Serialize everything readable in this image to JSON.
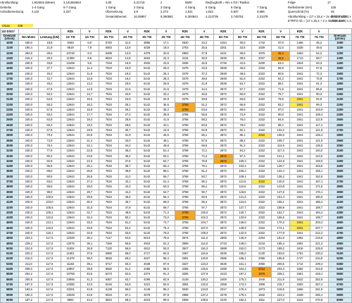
{
  "header": {
    "rows": [
      [
        "Abrollumfang:",
        "1,934815 (Meter)",
        "3,141592654",
        "3,05",
        "0,31715",
        "2",
        "5500",
        "Radzugkraft = Nm x G0 / Radius",
        "",
        "Felge",
        "17"
      ],
      [
        "Getriebe",
        "1-4 Gang",
        "5-7 Gang",
        "1 Gang",
        "2 Gang",
        "3 Gang",
        "4 Gang",
        "5 Gang",
        "6 Gang",
        "7 Gang",
        "Reifenbreite (mm)",
        "225"
      ],
      [
        "Achsübersetzung",
        "4,118",
        "3,227",
        "Übersetzung",
        "3,9",
        "2,273",
        "1,531",
        "1,023",
        "0,837",
        "0,686",
        "Querschnitt (%)",
        "45"
      ],
      [
        "",
        "",
        "",
        "Gesamtüberset.",
        "16,05957",
        "9,360581",
        "6,304844",
        "4,213735",
        "2,745751",
        "2,21378",
        "Abrollumfang = (17 x 25,4 + 2x 45 /100 x225) x 3,14159",
        "1962,71222"
      ],
      [
        "",
        "",
        "",
        "",
        "",
        "",
        "",
        "",
        "",
        "",
        "ETRTO Ab = (17 x 25,4 + 2 x 45 /100 x225) x 3,15",
        "1934,815"
      ]
    ],
    "vmax_label": "Vmax",
    "vmax_value": "235"
  },
  "table": {
    "title": "110 DSG7",
    "columns": [
      "Drehzahl (U/min)",
      "Nm Motor",
      "Leistung (kW)",
      "RZK",
      "V",
      "RZK",
      "V",
      "RZK",
      "V",
      "RZK",
      "V",
      "RZK",
      "V",
      "RZK",
      "V",
      "RZK",
      "V",
      "Drehzahl (U/min)"
    ],
    "subheader": [
      "Drehzahl (U/min)",
      "Nm Motor",
      "Leistung (kW)",
      "1G TSI",
      "1G TSI",
      "2G TSI",
      "2G TSI",
      "3G TSI",
      "3G TSI",
      "4G TSI",
      "4G TSI",
      "5G TSI",
      "5G TSI",
      "6G TSI",
      "6G TSI",
      "7G TSI",
      "7G TSI",
      "Drehzahl (U/min)"
    ],
    "rows": [
      [
        "1000",
        "180,0",
        "18,8",
        "9493",
        "6,9",
        "5720",
        "11,5",
        "3856",
        "17,1",
        "2620",
        "23,3",
        "2154",
        "30,6",
        "1742",
        "37,8",
        "1466",
        "45,2",
        "1000"
      ],
      [
        "1100",
        "190,4",
        "21,9",
        "9819",
        "7,9",
        "6063",
        "12,9",
        "4029",
        "19,0",
        "2753",
        "25,5",
        "2261",
        "33,5",
        "1829",
        "41,6",
        "1538",
        "49,6",
        "1100"
      ],
      [
        "1200",
        "204,6",
        "25,6",
        "10748",
        "8,3",
        "6489",
        "13,9",
        "4379",
        "20,6",
        "2963",
        "27,8",
        "2421",
        "36,5",
        "1976",
        "45,4",
        "1663",
        "54,2",
        "1200"
      ],
      [
        "1300",
        "215,2",
        "29,3",
        "11398",
        "8,8",
        "6834",
        "14,8",
        "4604",
        "22,3",
        "3115",
        "30,0",
        "2545",
        "39,5",
        "2037",
        "49,2",
        "1713",
        "58,7",
        "1300"
      ],
      [
        "1400",
        "230,5",
        "33,8",
        "12208",
        "9,6",
        "7318",
        "15,9",
        "4932",
        "23,6",
        "3336",
        "32,5",
        "2725",
        "42,5",
        "2200",
        "53,0",
        "1844",
        "63,3",
        "1400"
      ],
      [
        "1500",
        "240,0",
        "37,7",
        "12644",
        "11,4",
        "7634",
        "16,9",
        "5142",
        "25,0",
        "3479",
        "34,9",
        "2848",
        "45,6",
        "2322",
        "56,8",
        "1941",
        "67,8",
        "1500"
      ],
      [
        "1600",
        "240,0",
        "40,2",
        "12644",
        "11,8",
        "7634",
        "18,3",
        "5142",
        "26,4",
        "3479",
        "37,2",
        "2848",
        "48,6",
        "2322",
        "60,5",
        "1941",
        "72,3",
        "1600"
      ],
      [
        "1700",
        "240,0",
        "42,7",
        "12644",
        "12,5",
        "7634",
        "19,4",
        "5142",
        "28,3",
        "3479",
        "39,6",
        "2848",
        "51,6",
        "2322",
        "64,3",
        "1941",
        "76,8",
        "1700"
      ],
      [
        "1800",
        "240,0",
        "45,2",
        "12644",
        "13,2",
        "7634",
        "20,5",
        "5142",
        "29,9",
        "3479",
        "41,9",
        "2848",
        "54,7",
        "2322",
        "68,1",
        "1941",
        "81,3",
        "1800"
      ],
      [
        "1900",
        "240,0",
        "47,8",
        "12644",
        "14,0",
        "7634",
        "21,6",
        "5142",
        "31,5",
        "3479",
        "44,2",
        "2872",
        "57,7",
        "2322",
        "71,9",
        "1941",
        "85,8",
        "1900"
      ],
      [
        "2000",
        "240,0",
        "50,3",
        "12644",
        "14,7",
        "7634",
        "22,8",
        "5142",
        "33,2",
        "3479",
        "46,5",
        "2872",
        "60,8",
        "2322",
        "75,7",
        "1941",
        "90,3",
        "2000"
      ],
      [
        "2100",
        "240,0",
        "52,8",
        "12644",
        "15,5",
        "7634",
        "23,9",
        "5142",
        "34,9",
        "3479",
        "48,9",
        "2872",
        "63,8",
        "2322",
        "79,5",
        "1941",
        "94,8",
        "2100"
      ],
      [
        "2200",
        "240,0",
        "55,3",
        "12644",
        "16,2",
        "7634",
        "25,1",
        "5142",
        "36,5",
        "3768",
        "51,2",
        "2872",
        "66,9",
        "2322",
        "83,2",
        "1941",
        "99,3",
        "2200"
      ],
      [
        "2300",
        "240,0",
        "57,8",
        "12644",
        "16,9",
        "7634",
        "26,2",
        "5142",
        "38,2",
        "3768",
        "53,5",
        "2872",
        "69,9",
        "2322",
        "87,0",
        "1941",
        "103,9",
        "2300"
      ],
      [
        "2400",
        "240,0",
        "60,3",
        "12644",
        "17,7",
        "7634",
        "27,3",
        "5142",
        "39,8",
        "3768",
        "55,8",
        "2872",
        "72,9",
        "2322",
        "90,8",
        "1941",
        "108,4",
        "2400"
      ],
      [
        "2500",
        "240,0",
        "62,8",
        "12644",
        "18,4",
        "7634",
        "28,5",
        "5142",
        "41,5",
        "3768",
        "58,2",
        "2872",
        "76,0",
        "2322",
        "94,6",
        "1941",
        "112,9",
        "2500"
      ],
      [
        "2600",
        "240,0",
        "65,3",
        "12644",
        "19,2",
        "7634",
        "29,6",
        "5142",
        "43,1",
        "3768",
        "60,5",
        "2872",
        "79,0",
        "2322",
        "98,4",
        "1941",
        "117,4",
        "2600"
      ],
      [
        "2700",
        "240,0",
        "67,9",
        "12644",
        "19,9",
        "7634",
        "30,7",
        "5142",
        "44,8",
        "3768",
        "62,8",
        "2872",
        "82,1",
        "2322",
        "102,2",
        "1941",
        "121,9",
        "2700"
      ],
      [
        "2800",
        "240,0",
        "70,4",
        "12644",
        "20,6",
        "7634",
        "31,9",
        "5142",
        "46,5",
        "3768",
        "65,1",
        "2872",
        "85,1",
        "2322",
        "106,0",
        "1941",
        "126,4",
        "2800"
      ],
      [
        "2900",
        "240,0",
        "72,9",
        "12644",
        "21,4",
        "7634",
        "33,0",
        "5142",
        "48,1",
        "3768",
        "67,5",
        "2872",
        "88,2",
        "2322",
        "109,7",
        "1941",
        "131,0",
        "2900"
      ],
      [
        "3000",
        "240,0",
        "75,4",
        "12644",
        "22,1",
        "7634",
        "34,2",
        "5142",
        "49,8",
        "3768",
        "69,8",
        "2872",
        "91,2",
        "2322",
        "113,5",
        "1941",
        "135,5",
        "3000"
      ],
      [
        "3100",
        "240,0",
        "77,9",
        "12644",
        "22,8",
        "7634",
        "35,3",
        "5142",
        "51,4",
        "3768",
        "72,1",
        "2872",
        "94,2",
        "2322",
        "117,3",
        "1941",
        "140,0",
        "3100"
      ],
      [
        "3200",
        "240,0",
        "80,4",
        "12644",
        "23,6",
        "7634",
        "36,4",
        "5142",
        "53,1",
        "3768",
        "74,4",
        "2872",
        "97,3",
        "2322",
        "121,1",
        "1941",
        "144,5",
        "3200"
      ],
      [
        "3300",
        "240,0",
        "82,9",
        "12644",
        "24,3",
        "7634",
        "37,6",
        "5142",
        "54,7",
        "3768",
        "76,8",
        "2872",
        "100,3",
        "2322",
        "124,9",
        "1941",
        "149,0",
        "3300"
      ],
      [
        "3400",
        "240,0",
        "85,5",
        "12644",
        "25,1",
        "7634",
        "38,7",
        "5142",
        "56,4",
        "3768",
        "79,1",
        "2872",
        "103,4",
        "2322",
        "128,7",
        "1941",
        "153,5",
        "3400"
      ],
      [
        "3500",
        "240,0",
        "88,0",
        "12644",
        "25,8",
        "7634",
        "39,8",
        "5142",
        "58,1",
        "3768",
        "81,4",
        "2872",
        "106,4",
        "2322",
        "132,4",
        "1941",
        "158,1",
        "3500"
      ],
      [
        "3600",
        "240,0",
        "90,5",
        "12644",
        "26,5",
        "7634",
        "41,0",
        "5142",
        "59,7",
        "3768",
        "83,7",
        "2872",
        "109,4",
        "2322",
        "136,2",
        "1941",
        "162,6",
        "3600"
      ],
      [
        "3700",
        "240,0",
        "93,0",
        "12644",
        "27,3",
        "7634",
        "42,1",
        "5142",
        "61,4",
        "3768",
        "86,1",
        "2872",
        "112,5",
        "2322",
        "140,0",
        "1941",
        "167,1",
        "3700"
      ],
      [
        "3800",
        "240,0",
        "95,5",
        "12644",
        "28,0",
        "7634",
        "43,3",
        "5142",
        "63,0",
        "3768",
        "88,4",
        "2872",
        "115,5",
        "2322",
        "143,8",
        "1941",
        "171,6",
        "3800"
      ],
      [
        "3900",
        "240,0",
        "98,0",
        "12644",
        "28,7",
        "7634",
        "44,4",
        "5142",
        "64,7",
        "3768",
        "90,7",
        "2872",
        "118,6",
        "2322",
        "147,6",
        "1941",
        "176,1",
        "3900"
      ],
      [
        "4000",
        "240,0",
        "100,5",
        "12644",
        "29,5",
        "7634",
        "45,5",
        "5142",
        "66,4",
        "3768",
        "93,0",
        "2872",
        "121,6",
        "2322",
        "151,4",
        "1941",
        "180,6",
        "4000"
      ],
      [
        "4100",
        "240,0",
        "103,0",
        "12644",
        "30,2",
        "7634",
        "46,7",
        "5142",
        "68,0",
        "3768",
        "95,4",
        "2872",
        "124,6",
        "2322",
        "155,1",
        "1941",
        "185,2",
        "4100"
      ],
      [
        "4200",
        "240,0",
        "105,6",
        "12644",
        "31,0",
        "7634",
        "47,8",
        "5142",
        "69,7",
        "3768",
        "97,7",
        "2872",
        "127,7",
        "2322",
        "158,9",
        "1941",
        "189,7",
        "4200"
      ],
      [
        "4300",
        "240,0",
        "108,1",
        "12644",
        "31,7",
        "7634",
        "48,9",
        "5142",
        "71,3",
        "3768",
        "100,0",
        "2872",
        "130,7",
        "2322",
        "162,7",
        "1941",
        "194,2",
        "4300"
      ],
      [
        "4400",
        "240,0",
        "110,6",
        "12644",
        "32,4",
        "7634",
        "50,1",
        "5142",
        "73,0",
        "3768",
        "102,3",
        "2872",
        "133,8",
        "2322",
        "166,5",
        "1941",
        "198,7",
        "4400"
      ],
      [
        "4500",
        "240,0",
        "113,1",
        "12644",
        "33,2",
        "7634",
        "51,2",
        "5142",
        "74,7",
        "3768",
        "104,7",
        "2872",
        "136,8",
        "2322",
        "170,3",
        "1941",
        "203,2",
        "4500"
      ],
      [
        "4600",
        "240,0",
        "115,6",
        "12644",
        "33,9",
        "7634",
        "52,4",
        "5142",
        "76,3",
        "3768",
        "107,0",
        "2872",
        "139,8",
        "2322",
        "174,1",
        "1941",
        "207,7",
        "4600"
      ],
      [
        "4700",
        "240,0",
        "118,1",
        "12644",
        "34,6",
        "7634",
        "53,5",
        "5142",
        "78,0",
        "3768",
        "109,3",
        "2872",
        "142,9",
        "2322",
        "177,8",
        "1941",
        "212,2",
        "4700"
      ],
      [
        "4800",
        "234,0",
        "117,6",
        "12328",
        "35,4",
        "7417",
        "54,6",
        "5013",
        "79,6",
        "3674",
        "111,6",
        "2800",
        "145,9",
        "2264",
        "181,6",
        "1892",
        "216,8",
        "4800"
      ],
      [
        "4900",
        "229,2",
        "117,6",
        "12076",
        "36,1",
        "7266",
        "55,8",
        "4910",
        "81,3",
        "3599",
        "114,0",
        "2743",
        "149,0",
        "2218",
        "185,4",
        "1854",
        "221,3",
        "4900"
      ],
      [
        "5000",
        "224,6",
        "117,6",
        "11834",
        "36,9",
        "7120",
        "56,9",
        "4812",
        "83,0",
        "3527",
        "116,3",
        "2688",
        "152,0",
        "2173",
        "189,2",
        "1816",
        "225,8",
        "5000"
      ],
      [
        "5100",
        "220,2",
        "117,6",
        "11601",
        "37,6",
        "6980",
        "58,0",
        "4717",
        "84,6",
        "3457",
        "118,6",
        "2635",
        "155,0",
        "2130",
        "193,0",
        "1781",
        "230,3",
        "5100"
      ],
      [
        "5200",
        "216,0",
        "117,6",
        "11378",
        "38,3",
        "6846",
        "59,2",
        "4627",
        "86,3",
        "3391",
        "120,9",
        "2585",
        "158,1",
        "2090",
        "196,8",
        "1747",
        "234,8",
        "5200"
      ],
      [
        "5300",
        "211,9",
        "117,6",
        "11163",
        "39,1",
        "6717",
        "60,3",
        "4539",
        "87,9",
        "3327",
        "123,3",
        "2536",
        "161,1",
        "2050",
        "200,5",
        "1714",
        "239,3",
        "5300"
      ],
      [
        "5400",
        "208,0",
        "117,6",
        "10957",
        "39,8",
        "6592",
        "61,4",
        "4455",
        "89,6",
        "3265",
        "125,6",
        "2489",
        "164,2",
        "2012",
        "204,3",
        "1682",
        "243,8",
        "5400"
      ],
      [
        "5500",
        "204,2",
        "117,6",
        "10758",
        "40,5",
        "6473",
        "62,6",
        "4374",
        "91,3",
        "3206",
        "127,9",
        "2443",
        "167,2",
        "1976",
        "208,1",
        "1651",
        "248,4",
        "5500"
      ],
      [
        "5600",
        "200,5",
        "117,6",
        "10566",
        "41,3",
        "6357",
        "63,7",
        "4296",
        "92,9",
        "3149",
        "130,2",
        "2400",
        "170,2",
        "1940",
        "211,9",
        "1622",
        "252,9",
        "5600"
      ],
      [
        "5700",
        "197,0",
        "117,6",
        "10380",
        "42,0",
        "6246",
        "64,8",
        "4221",
        "94,6",
        "3094",
        "132,6",
        "2358",
        "173,3",
        "1906",
        "215,7",
        "1593",
        "257,4",
        "5700"
      ],
      [
        "5800",
        "193,6",
        "117,6",
        "10201",
        "42,8",
        "6138",
        "66,0",
        "4148",
        "96,2",
        "3040",
        "134,9",
        "2317",
        "176,3",
        "1873",
        "219,5",
        "1566",
        "261,9",
        "5800"
      ],
      [
        "5900",
        "190,3",
        "117,6",
        "10029",
        "43,5",
        "6034",
        "67,1",
        "4078",
        "97,9",
        "2989",
        "137,2",
        "2278",
        "179,4",
        "1842",
        "223,2",
        "1539",
        "266,4",
        "5900"
      ],
      [
        "6000",
        "187,2",
        "117,6",
        "9862",
        "44,2",
        "5934",
        "68,3",
        "4010",
        "99,6",
        "2939",
        "139,5",
        "2240",
        "182,4",
        "1811",
        "227,0",
        "1514",
        "270,9",
        "6000"
      ]
    ],
    "highlights": {
      "orange": [
        [
          "1200",
          14
        ],
        [
          "1300",
          14
        ],
        [
          "2200",
          9
        ],
        [
          "2300",
          9
        ],
        [
          "3200",
          11
        ],
        [
          "3300",
          11
        ],
        [
          "4300",
          9
        ],
        [
          "4400",
          9
        ],
        [
          "5400",
          13
        ],
        [
          "5500",
          13
        ]
      ],
      "yellow": [
        [
          "2100",
          15
        ],
        [
          "2200",
          15
        ],
        [
          "2800",
          13
        ],
        [
          "3700",
          13
        ],
        [
          "4500",
          15
        ],
        [
          "4600",
          15
        ]
      ]
    }
  }
}
